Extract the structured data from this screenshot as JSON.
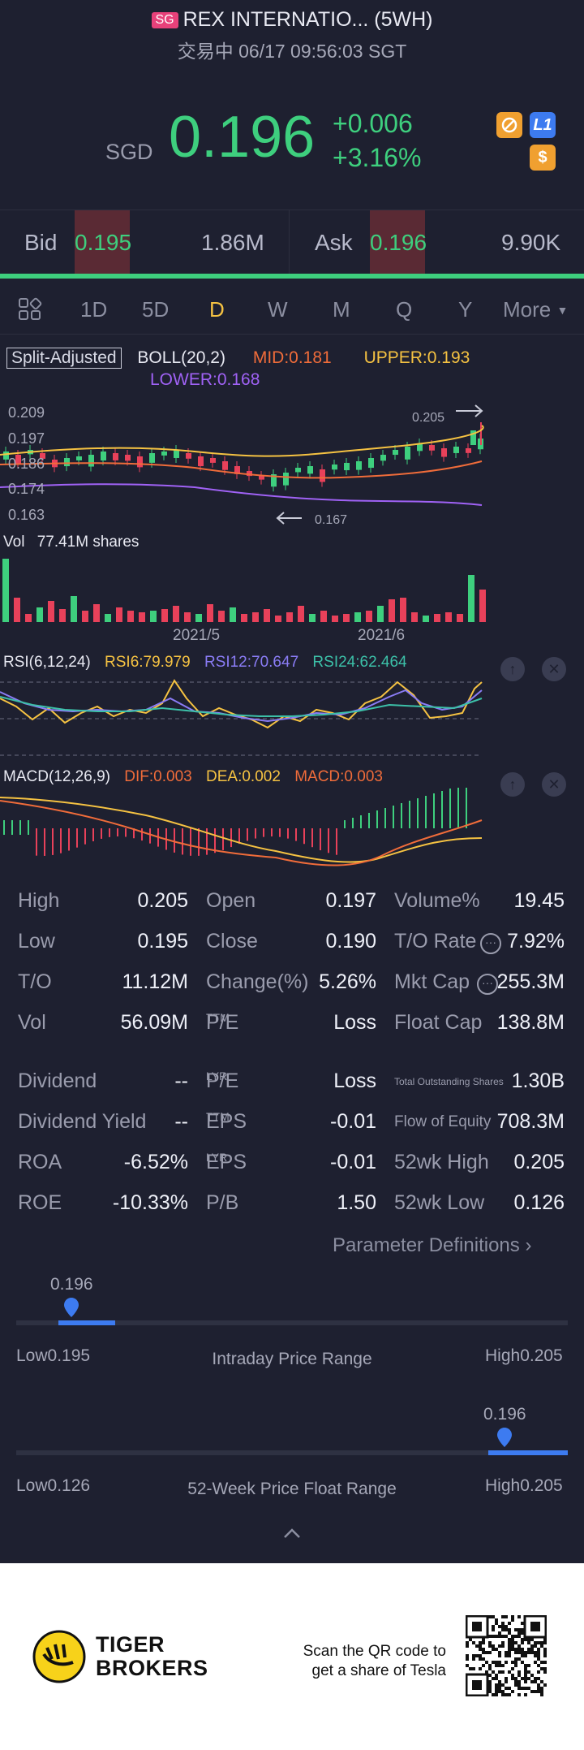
{
  "header": {
    "market_badge": "SG",
    "title": "REX INTERNATIO... (5WH)",
    "status": "交易中 06/17 09:56:03 SGT"
  },
  "quote": {
    "currency": "SGD",
    "price": "0.196",
    "change": "+0.006",
    "change_pct": "+3.16%",
    "icons": [
      "no-short-icon",
      "level1-icon",
      "dollar-icon"
    ],
    "level_badge": "L1",
    "dollar_badge": "$"
  },
  "bidask": {
    "bid_label": "Bid",
    "bid_price": "0.195",
    "bid_size": "1.86M",
    "ask_label": "Ask",
    "ask_price": "0.196",
    "ask_size": "9.90K"
  },
  "tabs": {
    "items": [
      "1D",
      "5D",
      "D",
      "W",
      "M",
      "Q",
      "Y",
      "More"
    ],
    "active": "D"
  },
  "indicators": {
    "split": "Split-Adjusted",
    "boll": "BOLL(20,2)",
    "mid": "MID:0.181",
    "upper": "UPPER:0.193",
    "lower": "LOWER:0.168",
    "y_labels": [
      "0.209",
      "0.197",
      "0.186",
      "0.174",
      "0.163"
    ],
    "high_mark": "0.205",
    "low_mark": "0.167",
    "vol_label": "Vol",
    "vol_value": "77.41M shares",
    "x_labels": [
      "2021/5",
      "2021/6"
    ],
    "rsi": "RSI(6,12,24)",
    "rsi6": "RSI6:79.979",
    "rsi12": "RSI12:70.647",
    "rsi24": "RSI24:62.464",
    "macd": "MACD(12,26,9)",
    "dif": "DIF:0.003",
    "dea": "DEA:0.002",
    "macd_val": "MACD:0.003"
  },
  "stats": {
    "rows": [
      [
        "High",
        "0.205",
        "Open",
        "0.197",
        "Volume%",
        "19.45"
      ],
      [
        "Low",
        "0.195",
        "Close",
        "0.190",
        "T/O Rate",
        "7.92%"
      ],
      [
        "T/O",
        "11.12M",
        "Change(%)",
        "5.26%",
        "Mkt Cap",
        "255.3M"
      ],
      [
        "Vol",
        "56.09M",
        "P/E",
        "Loss",
        "Float Cap",
        "138.8M"
      ],
      [
        "Dividend",
        "--",
        "P/E",
        "Loss",
        "Total Outstanding Shares",
        "1.30B"
      ],
      [
        "Dividend Yield",
        "--",
        "EPS",
        "-0.01",
        "Flow of Equity",
        "708.3M"
      ],
      [
        "ROA",
        "-6.52%",
        "EPS",
        "-0.01",
        "52wk High",
        "0.205"
      ],
      [
        "ROE",
        "-10.33%",
        "P/B",
        "1.50",
        "52wk Low",
        "0.126"
      ]
    ],
    "sup_ttm": "TTM",
    "sup_lyr": "LYR",
    "param_link": "Parameter Definitions"
  },
  "intraday": {
    "current": "0.196",
    "low": "Low0.195",
    "title": "Intraday Price Range",
    "high": "High0.205",
    "position": 0.1
  },
  "week52": {
    "current": "0.196",
    "low": "Low0.126",
    "title": "52-Week Price Float Range",
    "high": "High0.205",
    "position": 0.886
  },
  "footer": {
    "brand_line1": "TIGER",
    "brand_line2": "BROKERS",
    "cta_line1": "Scan the QR code to",
    "cta_line2": "get a share of Tesla"
  }
}
